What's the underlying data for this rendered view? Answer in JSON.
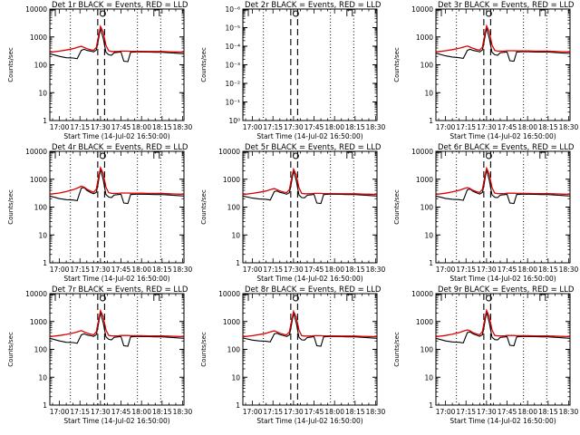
{
  "colors": {
    "events": "#000000",
    "lld": "#dd0000",
    "background": "#ffffff"
  },
  "time_ticks": [
    "17:00",
    "17:15",
    "17:30",
    "17:45",
    "18:00",
    "18:15",
    "18:30"
  ],
  "chart_data": [
    {
      "type": "line",
      "title": "Det 1r BLACK = Events, RED = LLD",
      "xlabel": "Start Time (14-Jul-02 16:50:00)",
      "ylabel": "Counts/sec",
      "xlim": [
        "16:53",
        "18:31"
      ],
      "ylim": [
        1,
        10000
      ],
      "yscale": "log",
      "ytick_labels": [
        "1",
        "10",
        "100",
        "1000",
        "10000"
      ],
      "x": [
        "16:53",
        "17:00",
        "17:05",
        "17:10",
        "17:13",
        "17:16",
        "17:18",
        "17:20",
        "17:23",
        "17:25",
        "17:27",
        "17:28",
        "17:30",
        "17:32",
        "17:34",
        "17:36",
        "17:38",
        "17:40",
        "17:43",
        "17:45",
        "17:47",
        "17:50",
        "17:52",
        "17:56",
        "18:00",
        "18:05",
        "18:10",
        "18:15",
        "18:20",
        "18:25",
        "18:31"
      ],
      "series": [
        {
          "name": "Events",
          "values": [
            250,
            200,
            180,
            175,
            165,
            330,
            360,
            330,
            310,
            290,
            340,
            600,
            2000,
            900,
            280,
            230,
            220,
            270,
            280,
            290,
            135,
            130,
            280,
            290,
            290,
            285,
            280,
            280,
            270,
            260,
            250
          ]
        },
        {
          "name": "LLD",
          "values": [
            280,
            310,
            340,
            380,
            420,
            460,
            420,
            380,
            345,
            330,
            420,
            800,
            2400,
            1500,
            500,
            320,
            300,
            300,
            300,
            310,
            310,
            310,
            305,
            305,
            305,
            300,
            300,
            300,
            295,
            290,
            285
          ]
        }
      ]
    },
    {
      "type": "line",
      "title": "Det 2r BLACK = Events, RED = LLD",
      "xlabel": "Start Time (14-Jul-02 16:50:00)",
      "ylabel": "Counts/sec",
      "xlim": [
        "16:53",
        "18:31"
      ],
      "ylim": [
        1,
        1e-06
      ],
      "yscale": "log",
      "ytick_labels": [
        "10⁰",
        "10⁻¹",
        "10⁻²",
        "10⁻³",
        "10⁻⁴",
        "10⁻⁵",
        "10⁻⁶"
      ],
      "x": [],
      "series": []
    },
    {
      "type": "line",
      "title": "Det 3r BLACK = Events, RED = LLD",
      "xlabel": "Start Time (14-Jul-02 16:50:00)",
      "ylabel": "Counts/sec",
      "xlim": [
        "16:53",
        "18:31"
      ],
      "ylim": [
        1,
        10000
      ],
      "yscale": "log",
      "ytick_labels": [
        "1",
        "10",
        "100",
        "1000",
        "10000"
      ],
      "x": [
        "16:53",
        "17:00",
        "17:05",
        "17:10",
        "17:13",
        "17:16",
        "17:18",
        "17:20",
        "17:23",
        "17:25",
        "17:27",
        "17:28",
        "17:30",
        "17:32",
        "17:34",
        "17:36",
        "17:38",
        "17:40",
        "17:43",
        "17:45",
        "17:47",
        "17:50",
        "17:52",
        "17:56",
        "18:00",
        "18:05",
        "18:10",
        "18:15",
        "18:20",
        "18:25",
        "18:31"
      ],
      "series": [
        {
          "name": "Events",
          "values": [
            260,
            210,
            190,
            180,
            170,
            330,
            360,
            330,
            310,
            290,
            340,
            600,
            2100,
            900,
            280,
            230,
            220,
            270,
            280,
            290,
            140,
            135,
            285,
            295,
            295,
            290,
            285,
            285,
            275,
            265,
            255
          ]
        },
        {
          "name": "LLD",
          "values": [
            290,
            320,
            350,
            390,
            430,
            470,
            430,
            390,
            350,
            335,
            430,
            820,
            2500,
            1550,
            510,
            330,
            310,
            310,
            310,
            320,
            320,
            320,
            315,
            315,
            315,
            310,
            310,
            310,
            300,
            295,
            290
          ]
        }
      ]
    },
    {
      "type": "line",
      "title": "Det 4r BLACK = Events, RED = LLD",
      "xlabel": "Start Time (14-Jul-02 16:50:00)",
      "ylabel": "Counts/sec",
      "xlim": [
        "16:53",
        "18:31"
      ],
      "ylim": [
        1,
        10000
      ],
      "yscale": "log",
      "ytick_labels": [
        "1",
        "10",
        "100",
        "1000",
        "10000"
      ],
      "x": [
        "16:53",
        "17:00",
        "17:05",
        "17:10",
        "17:13",
        "17:16",
        "17:18",
        "17:20",
        "17:23",
        "17:25",
        "17:27",
        "17:28",
        "17:30",
        "17:32",
        "17:34",
        "17:36",
        "17:38",
        "17:40",
        "17:43",
        "17:45",
        "17:47",
        "17:50",
        "17:52",
        "17:56",
        "18:00",
        "18:05",
        "18:10",
        "18:15",
        "18:20",
        "18:25",
        "18:31"
      ],
      "series": [
        {
          "name": "Events",
          "values": [
            250,
            200,
            185,
            180,
            170,
            480,
            500,
            400,
            330,
            300,
            340,
            600,
            2300,
            950,
            280,
            230,
            220,
            270,
            280,
            290,
            140,
            135,
            280,
            290,
            290,
            285,
            280,
            280,
            270,
            260,
            250
          ]
        },
        {
          "name": "LLD",
          "values": [
            290,
            320,
            360,
            420,
            480,
            560,
            520,
            440,
            370,
            340,
            440,
            850,
            2600,
            1600,
            520,
            330,
            310,
            310,
            310,
            320,
            320,
            320,
            315,
            315,
            315,
            310,
            310,
            310,
            300,
            295,
            290
          ]
        }
      ]
    },
    {
      "type": "line",
      "title": "Det 5r BLACK = Events, RED = LLD",
      "xlabel": "Start Time (14-Jul-02 16:50:00)",
      "ylabel": "Counts/sec",
      "xlim": [
        "16:53",
        "18:31"
      ],
      "ylim": [
        1,
        10000
      ],
      "yscale": "log",
      "ytick_labels": [
        "1",
        "10",
        "100",
        "1000",
        "10000"
      ],
      "x": [
        "16:53",
        "17:00",
        "17:05",
        "17:10",
        "17:13",
        "17:16",
        "17:18",
        "17:20",
        "17:23",
        "17:25",
        "17:27",
        "17:28",
        "17:30",
        "17:32",
        "17:34",
        "17:36",
        "17:38",
        "17:40",
        "17:43",
        "17:45",
        "17:47",
        "17:50",
        "17:52",
        "17:56",
        "18:00",
        "18:05",
        "18:10",
        "18:15",
        "18:20",
        "18:25",
        "18:31"
      ],
      "series": [
        {
          "name": "Events",
          "values": [
            250,
            210,
            195,
            190,
            180,
            360,
            380,
            340,
            310,
            290,
            330,
            560,
            2000,
            900,
            270,
            220,
            215,
            265,
            275,
            285,
            140,
            135,
            280,
            290,
            290,
            285,
            280,
            280,
            270,
            260,
            250
          ]
        },
        {
          "name": "LLD",
          "values": [
            280,
            310,
            340,
            380,
            420,
            460,
            420,
            380,
            345,
            330,
            420,
            780,
            2300,
            1450,
            490,
            310,
            300,
            300,
            300,
            310,
            310,
            310,
            305,
            305,
            305,
            300,
            300,
            300,
            295,
            290,
            285
          ]
        }
      ]
    },
    {
      "type": "line",
      "title": "Det 6r BLACK = Events, RED = LLD",
      "xlabel": "Start Time (14-Jul-02 16:50:00)",
      "ylabel": "Counts/sec",
      "xlim": [
        "16:53",
        "18:31"
      ],
      "ylim": [
        1,
        10000
      ],
      "yscale": "log",
      "ytick_labels": [
        "1",
        "10",
        "100",
        "1000",
        "10000"
      ],
      "x": [
        "16:53",
        "17:00",
        "17:05",
        "17:10",
        "17:13",
        "17:16",
        "17:18",
        "17:20",
        "17:23",
        "17:25",
        "17:27",
        "17:28",
        "17:30",
        "17:32",
        "17:34",
        "17:36",
        "17:38",
        "17:40",
        "17:43",
        "17:45",
        "17:47",
        "17:50",
        "17:52",
        "17:56",
        "18:00",
        "18:05",
        "18:10",
        "18:15",
        "18:20",
        "18:25",
        "18:31"
      ],
      "series": [
        {
          "name": "Events",
          "values": [
            250,
            205,
            190,
            185,
            175,
            420,
            440,
            370,
            320,
            295,
            335,
            580,
            2200,
            920,
            275,
            225,
            218,
            268,
            278,
            288,
            140,
            135,
            280,
            290,
            290,
            285,
            280,
            280,
            270,
            260,
            250
          ]
        },
        {
          "name": "LLD",
          "values": [
            285,
            315,
            350,
            400,
            450,
            500,
            460,
            400,
            355,
            335,
            430,
            820,
            2500,
            1500,
            500,
            320,
            305,
            305,
            305,
            315,
            315,
            315,
            310,
            310,
            310,
            305,
            305,
            305,
            298,
            292,
            288
          ]
        }
      ]
    },
    {
      "type": "line",
      "title": "Det 7r BLACK = Events, RED = LLD",
      "xlabel": "Start Time (14-Jul-02 16:50:00)",
      "ylabel": "Counts/sec",
      "xlim": [
        "16:53",
        "18:31"
      ],
      "ylim": [
        1,
        10000
      ],
      "yscale": "log",
      "ytick_labels": [
        "1",
        "10",
        "100",
        "1000",
        "10000"
      ],
      "x": [
        "16:53",
        "17:00",
        "17:05",
        "17:10",
        "17:13",
        "17:16",
        "17:18",
        "17:20",
        "17:23",
        "17:25",
        "17:27",
        "17:28",
        "17:30",
        "17:32",
        "17:34",
        "17:36",
        "17:38",
        "17:40",
        "17:43",
        "17:45",
        "17:47",
        "17:50",
        "17:52",
        "17:56",
        "18:00",
        "18:05",
        "18:10",
        "18:15",
        "18:20",
        "18:25",
        "18:31"
      ],
      "series": [
        {
          "name": "Events",
          "values": [
            250,
            200,
            180,
            175,
            165,
            330,
            360,
            330,
            310,
            290,
            340,
            600,
            2100,
            900,
            280,
            230,
            220,
            270,
            280,
            290,
            135,
            130,
            280,
            290,
            290,
            285,
            280,
            280,
            270,
            260,
            250
          ]
        },
        {
          "name": "LLD",
          "values": [
            285,
            315,
            345,
            385,
            425,
            470,
            425,
            385,
            348,
            332,
            425,
            810,
            2450,
            1500,
            500,
            320,
            305,
            305,
            305,
            315,
            315,
            315,
            310,
            310,
            310,
            305,
            305,
            305,
            298,
            292,
            288
          ]
        }
      ]
    },
    {
      "type": "line",
      "title": "Det 8r BLACK = Events, RED = LLD",
      "xlabel": "Start Time (14-Jul-02 16:50:00)",
      "ylabel": "Counts/sec",
      "xlim": [
        "16:53",
        "18:31"
      ],
      "ylim": [
        1,
        10000
      ],
      "yscale": "log",
      "ytick_labels": [
        "1",
        "10",
        "100",
        "1000",
        "10000"
      ],
      "x": [
        "16:53",
        "17:00",
        "17:05",
        "17:10",
        "17:13",
        "17:16",
        "17:18",
        "17:20",
        "17:23",
        "17:25",
        "17:27",
        "17:28",
        "17:30",
        "17:32",
        "17:34",
        "17:36",
        "17:38",
        "17:40",
        "17:43",
        "17:45",
        "17:47",
        "17:50",
        "17:52",
        "17:56",
        "18:00",
        "18:05",
        "18:10",
        "18:15",
        "18:20",
        "18:25",
        "18:31"
      ],
      "series": [
        {
          "name": "Events",
          "values": [
            255,
            215,
            200,
            195,
            185,
            360,
            380,
            340,
            310,
            290,
            330,
            560,
            2000,
            900,
            270,
            220,
            215,
            265,
            275,
            285,
            135,
            130,
            280,
            290,
            290,
            285,
            280,
            280,
            270,
            260,
            250
          ]
        },
        {
          "name": "LLD",
          "values": [
            280,
            310,
            340,
            380,
            420,
            460,
            420,
            380,
            345,
            330,
            420,
            780,
            2300,
            1450,
            490,
            310,
            300,
            300,
            300,
            310,
            310,
            310,
            305,
            305,
            305,
            300,
            300,
            300,
            295,
            290,
            285
          ]
        }
      ]
    },
    {
      "type": "line",
      "title": "Det 9r BLACK = Events, RED = LLD",
      "xlabel": "Start Time (14-Jul-02 16:50:00)",
      "ylabel": "Counts/sec",
      "xlim": [
        "16:53",
        "18:31"
      ],
      "ylim": [
        1,
        10000
      ],
      "yscale": "log",
      "ytick_labels": [
        "1",
        "10",
        "100",
        "1000",
        "10000"
      ],
      "x": [
        "16:53",
        "17:00",
        "17:05",
        "17:10",
        "17:13",
        "17:16",
        "17:18",
        "17:20",
        "17:23",
        "17:25",
        "17:27",
        "17:28",
        "17:30",
        "17:32",
        "17:34",
        "17:36",
        "17:38",
        "17:40",
        "17:43",
        "17:45",
        "17:47",
        "17:50",
        "17:52",
        "17:56",
        "18:00",
        "18:05",
        "18:10",
        "18:15",
        "18:20",
        "18:25",
        "18:31"
      ],
      "series": [
        {
          "name": "Events",
          "values": [
            250,
            200,
            185,
            180,
            170,
            400,
            420,
            360,
            320,
            295,
            335,
            580,
            2200,
            920,
            275,
            225,
            218,
            268,
            278,
            288,
            140,
            135,
            280,
            290,
            290,
            285,
            280,
            280,
            270,
            260,
            250
          ]
        },
        {
          "name": "LLD",
          "values": [
            285,
            315,
            350,
            400,
            450,
            500,
            460,
            400,
            355,
            335,
            430,
            820,
            2500,
            1500,
            500,
            320,
            305,
            305,
            305,
            315,
            315,
            315,
            310,
            310,
            310,
            305,
            305,
            305,
            298,
            292,
            288
          ]
        }
      ]
    }
  ]
}
